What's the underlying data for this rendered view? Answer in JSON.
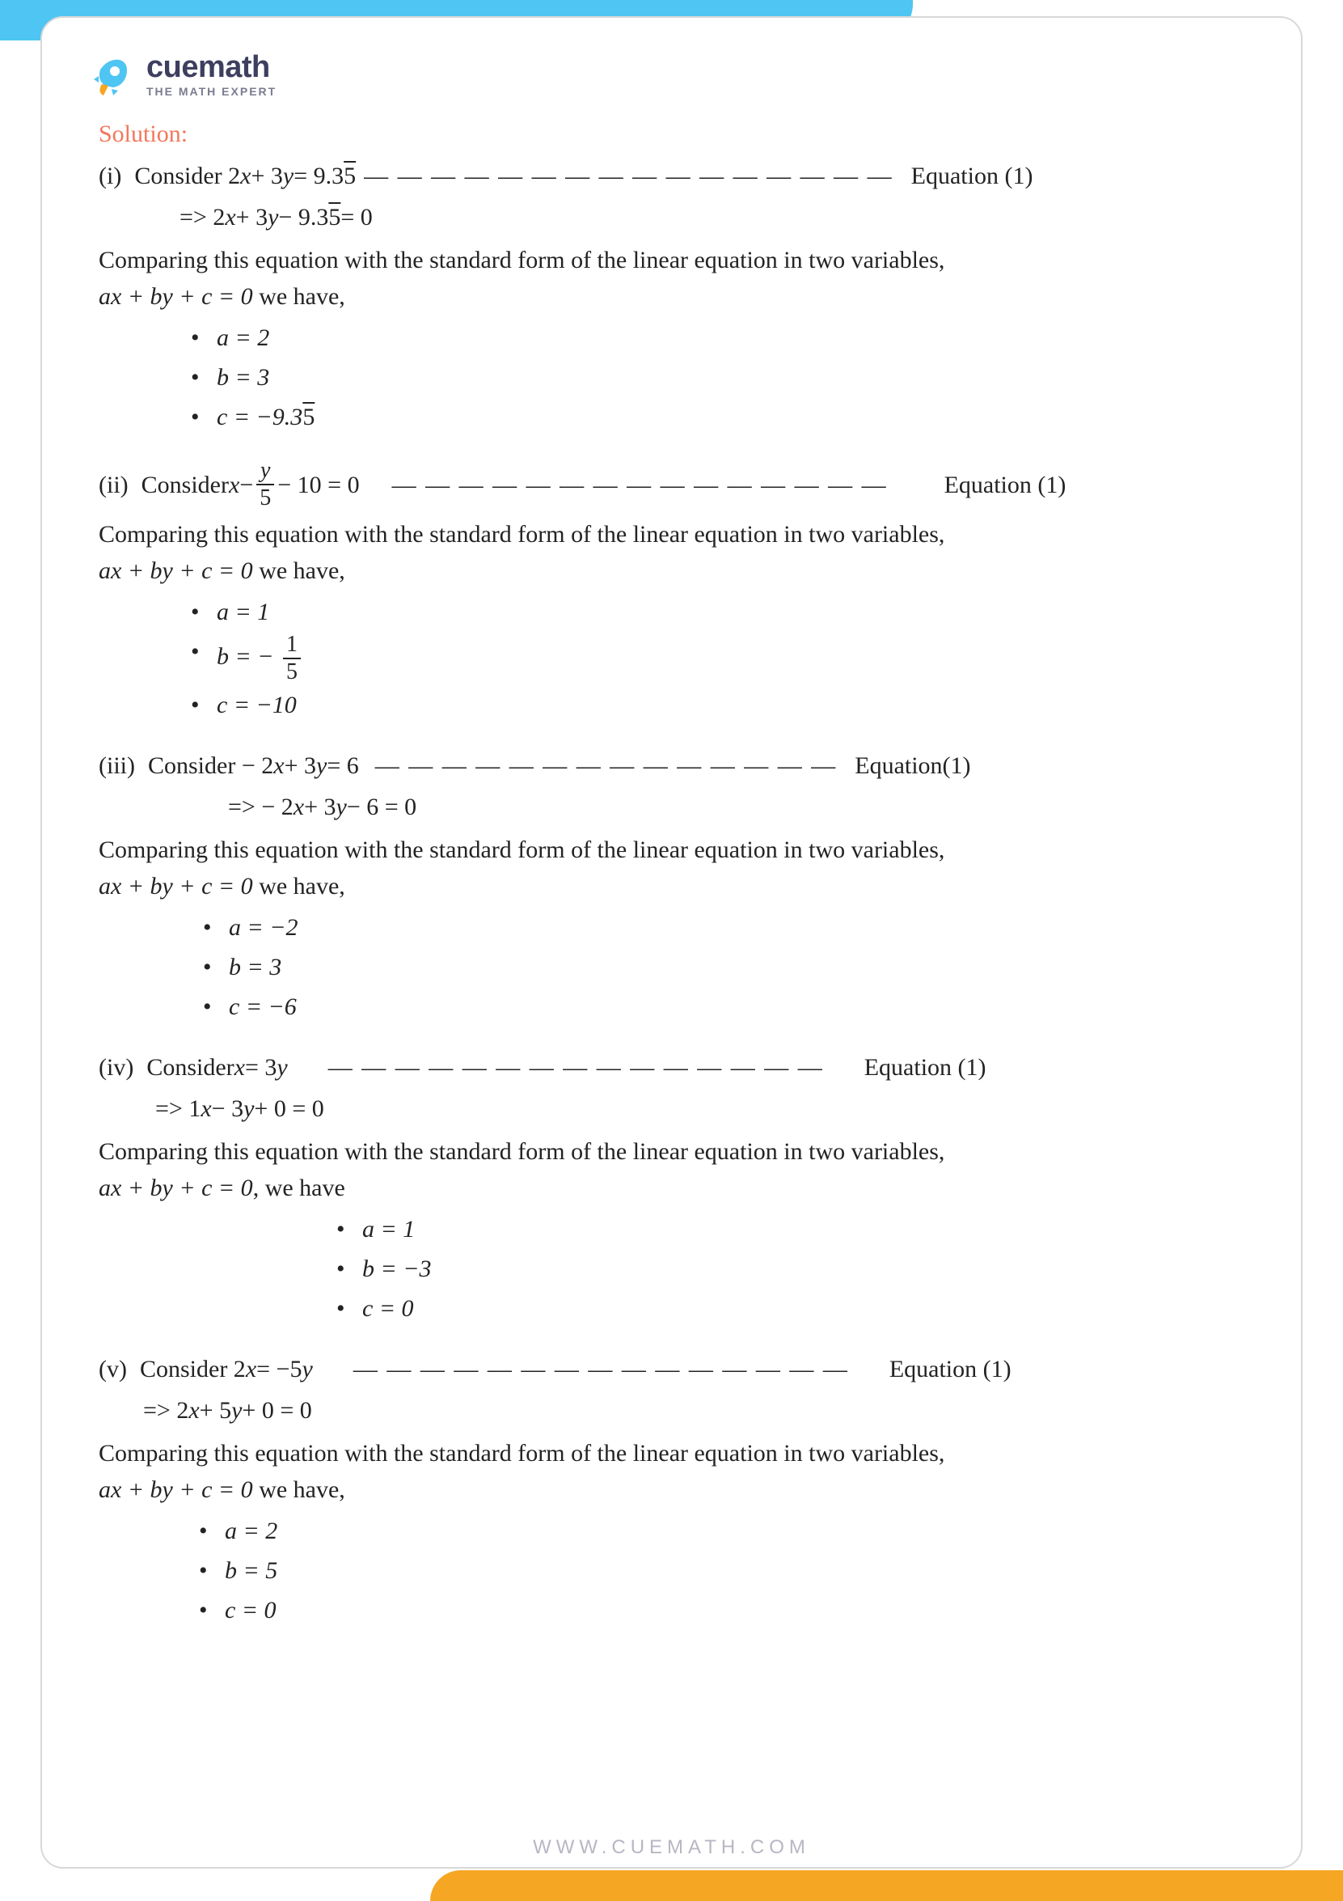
{
  "brand": {
    "name": "cuemath",
    "tagline": "THE MATH EXPERT",
    "logo_color_rocket": "#4ec5f2",
    "logo_color_flame": "#f5a623"
  },
  "layout": {
    "top_band_color": "#4ec5f2",
    "bottom_band_color": "#f5a623",
    "frame_border_color": "#d8d8d8",
    "page_bg": "#ffffff",
    "top_band_width_pct": 68,
    "bottom_band_width_pct": 68
  },
  "watermark": {
    "rocket_fill": "#d7eefc",
    "flame_fill": "#fbe7c0",
    "opacity": 0.12
  },
  "solution_label": "Solution:",
  "solution_label_color": "#f2775c",
  "text_color": "#232323",
  "body_fontsize_pt": 22,
  "comparing_text": "Comparing this equation with the standard form of the linear equation in two variables,",
  "standard_form_text_prefix": "ax + by + c = 0",
  "we_have": " we have,",
  "we_have_comma": ", we have",
  "equation_label": "Equation (1)",
  "equation_label_nospace": "Equation(1)",
  "dash_run_short": "— — — — — — — — — — — — — —",
  "dash_run_long": "— — — — — — — — — — — — — — — —",
  "dash_run_mid": "— — — — — — — — — — — — — — —",
  "sections": {
    "i": {
      "roman": "(i)",
      "consider": "Consider 2",
      "eq_line_1": " + 3",
      "eq_line_1b": " = 9.3",
      "eq_line_1c": "5",
      "arrow_line": "=>   2",
      "arrow_line_b": " + 3",
      "arrow_line_c": " − 9.3",
      "arrow_line_d": "5",
      "arrow_line_e": " = 0",
      "a": "a = 2",
      "b": "b = 3",
      "c_prefix": "c = −9.3",
      "c_suffix": "5"
    },
    "ii": {
      "roman": "(ii)",
      "consider": "Consider  ",
      "x": "x",
      "minus": " − ",
      "frac_num": "y",
      "frac_den": "5",
      "rest": " − 10 = 0",
      "a": "a = 1",
      "b_prefix": "b = − ",
      "b_frac_num": "1",
      "b_frac_den": "5",
      "c": "c = −10"
    },
    "iii": {
      "roman": "(iii)",
      "consider": "Consider  − 2",
      "eq_a": " + 3",
      "eq_b": " = 6",
      "arrow": "=> − 2",
      "arrow_b": " + 3",
      "arrow_c": " − 6 = 0",
      "a": "a = −2",
      "b": "b = 3",
      "c": "c = −6"
    },
    "iv": {
      "roman": "(iv)",
      "consider": "Consider ",
      "x": "x",
      "eq": " = 3",
      "y": "y",
      "arrow": "=> 1",
      "arrow_b": " − 3",
      "arrow_c": " + 0 = 0",
      "a": "a = 1",
      "b": "b = −3",
      "c": "c = 0"
    },
    "v": {
      "roman": "(v)",
      "consider": "Consider 2",
      "x": "x",
      "eq": " = −5",
      "y": "y",
      "arrow": "=> 2",
      "arrow_b": " + 5",
      "arrow_c": " + 0 = 0",
      "a": "a = 2",
      "b": "b = 5",
      "c": "c = 0"
    }
  },
  "vars": {
    "x": "x",
    "y": "y",
    "a": "a",
    "b": "b",
    "c": "c"
  },
  "footer_url": "WWW.CUEMATH.COM",
  "footer_color": "#b7b7c4"
}
